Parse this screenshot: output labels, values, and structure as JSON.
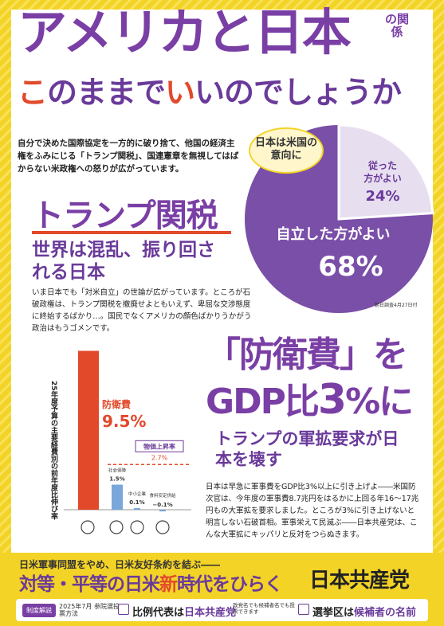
{
  "header": {
    "title": "アメリカと日本",
    "title_suffix": "の関係",
    "subtitle_part1": "こ",
    "subtitle_part2": "のままで",
    "subtitle_part3": "い",
    "subtitle_part4": "いのでしょうか"
  },
  "intro": "自分で決めた国際協定を一方的に破り捨て、他国の経済主権をふみにじる「トランプ関税」、国連憲章を無視してはばからない米政権への怒りが広がっています。",
  "poll": {
    "bubble": "日本は米国の意向に",
    "follow_label": "従った方がよい",
    "follow_value": "24%",
    "independent_label": "自立した方がよい",
    "independent_value": "68%",
    "note": "朝日調査4月27日付",
    "color_independent": "#7a4fa8",
    "color_follow": "#e7dff0"
  },
  "tariff": {
    "title": "トランプ関税",
    "sub": "世界は混乱、振り回される日本",
    "body": "いま日本でも「対米自立」の世論が広がっています。ところが石破政権は、トランプ関税を撤廃せよともいえず、卑屈な交渉態度に終始するばかり…。国民でなくアメリカの顔色ばかりうかがう政治はもうゴメンです。"
  },
  "chart_data": {
    "type": "bar",
    "ylabel": "25年度予算の主要経費別の前年度比伸び率",
    "categories": [
      "防衛費",
      "社会保障",
      "中小企業",
      "食料安定供給"
    ],
    "values": [
      9.5,
      1.5,
      0.1,
      -0.1
    ],
    "value_labels": [
      "9.5%",
      "1.5%",
      "0.1%",
      "−0.1%"
    ],
    "reference_label": "物価上昇率",
    "reference_value": 2.7,
    "reference_value_label": "2.7%",
    "colors": {
      "defense": "#e2492b",
      "others": "#7aa7d9",
      "reference": "#e2492b"
    }
  },
  "defense": {
    "title_line1": "「防衛費」を",
    "title_gdp": "GDP比",
    "title_3": "3",
    "title_pct": "%に",
    "sub": "トランプの軍拡要求が日本を壊す",
    "body": "日本は早急に軍事費をGDP比3%以上に引き上げよ――米国防次官は、今年度の軍事費8.7兆円をはるかに上回る年16〜17兆円もの大軍拡を要求しました。ところが3%に引き上げないと明言しない石破首相。軍事栄えて民滅ぶ――日本共産党は、こんな大軍拡にキッパリと反対をつらぬきます。"
  },
  "footer": {
    "line1": "日米軍事同盟をやめ、日米友好条約を結ぶ――",
    "line2_a": "対等・平等の日米",
    "line2_b": "新",
    "line2_c": "時代をひらく",
    "party": "日本共産党",
    "badge": "制度解説",
    "election": "2025年7月 参院選投票方法",
    "prop_label": "比例代表は",
    "prop_value": "日本共産党",
    "prop_note": "政党名でも候補者名でも投票できます",
    "district_label": "選挙区は",
    "district_value": "候補者の名前"
  }
}
